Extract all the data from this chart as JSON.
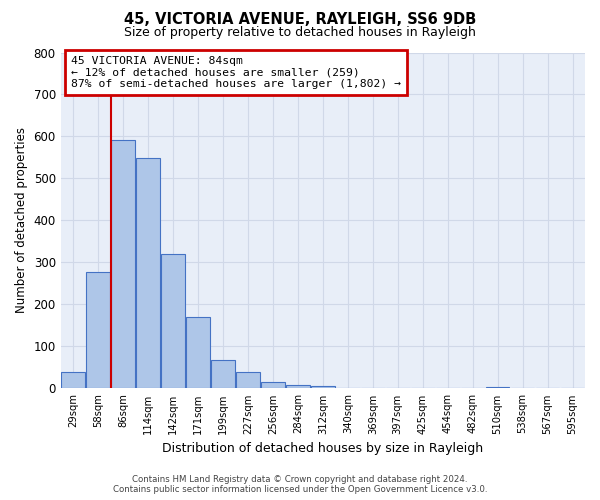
{
  "title": "45, VICTORIA AVENUE, RAYLEIGH, SS6 9DB",
  "subtitle": "Size of property relative to detached houses in Rayleigh",
  "xlabel": "Distribution of detached houses by size in Rayleigh",
  "ylabel": "Number of detached properties",
  "footer_line1": "Contains HM Land Registry data © Crown copyright and database right 2024.",
  "footer_line2": "Contains public sector information licensed under the Open Government Licence v3.0.",
  "bin_labels": [
    "29sqm",
    "58sqm",
    "86sqm",
    "114sqm",
    "142sqm",
    "171sqm",
    "199sqm",
    "227sqm",
    "256sqm",
    "284sqm",
    "312sqm",
    "340sqm",
    "369sqm",
    "397sqm",
    "425sqm",
    "454sqm",
    "482sqm",
    "510sqm",
    "538sqm",
    "567sqm",
    "595sqm"
  ],
  "bar_values": [
    38,
    278,
    591,
    549,
    320,
    170,
    68,
    38,
    15,
    8,
    5,
    0,
    0,
    0,
    0,
    0,
    0,
    3,
    0,
    0,
    0
  ],
  "bar_color": "#aec6e8",
  "bar_edge_color": "#4472c4",
  "ylim": [
    0,
    800
  ],
  "yticks": [
    0,
    100,
    200,
    300,
    400,
    500,
    600,
    700,
    800
  ],
  "annotation_title": "45 VICTORIA AVENUE: 84sqm",
  "annotation_line2": "← 12% of detached houses are smaller (259)",
  "annotation_line3": "87% of semi-detached houses are larger (1,802) →",
  "annotation_box_color": "#cc0000",
  "grid_color": "#d0d8e8",
  "background_color": "#e8eef8",
  "property_line_index": 1.5
}
